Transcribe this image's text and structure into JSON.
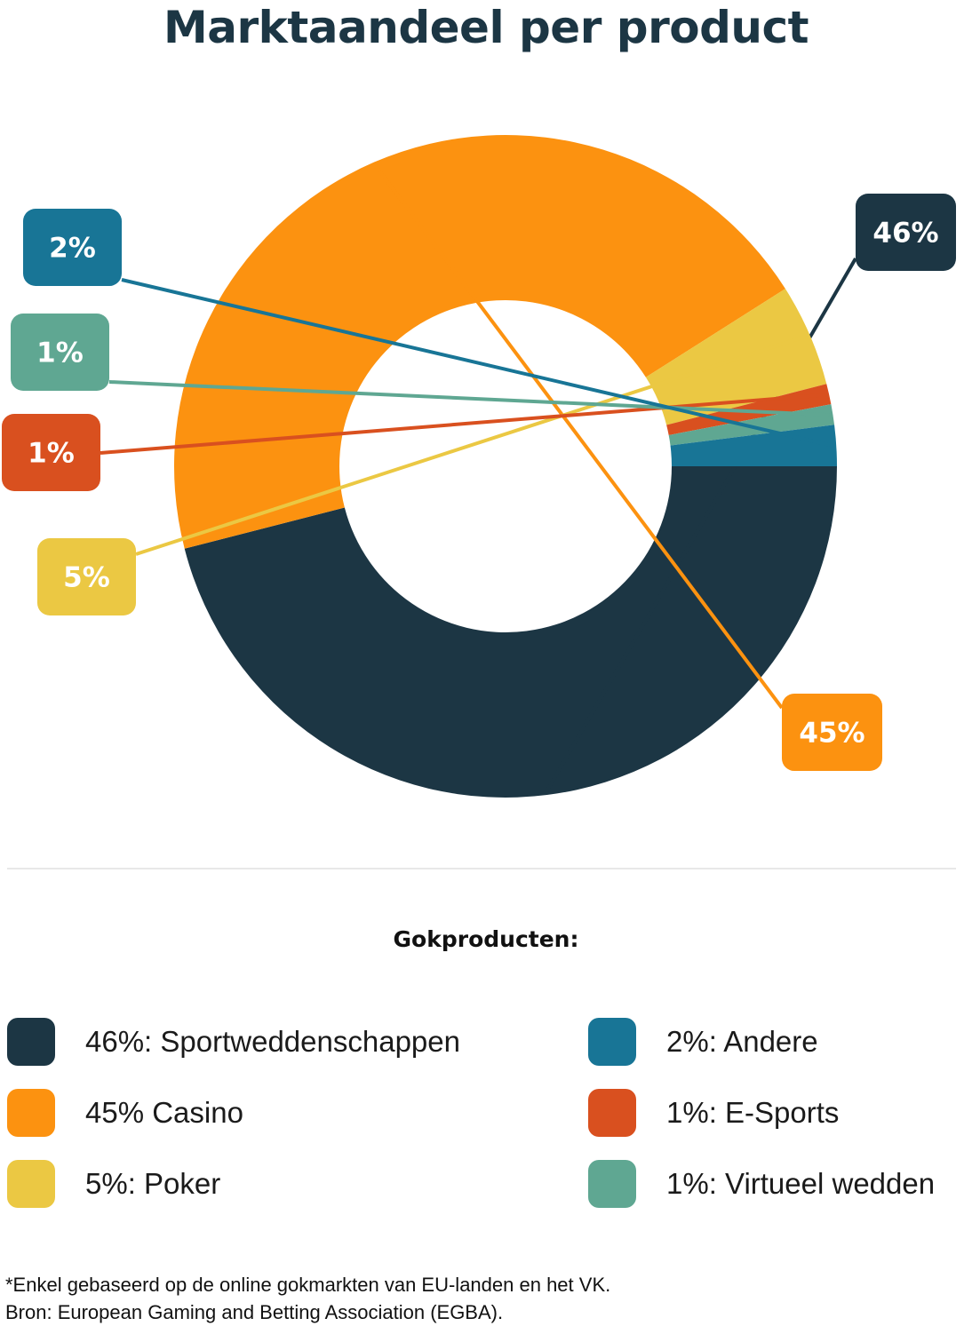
{
  "title": "Marktaandeel per product",
  "chart_data": {
    "type": "pie",
    "donut": true,
    "slices": [
      {
        "label": "Sportweddenschappen",
        "value": 46,
        "display": "46%",
        "color": "#1c3644"
      },
      {
        "label": "Casino",
        "value": 45,
        "display": "45%",
        "color": "#fc9210"
      },
      {
        "label": "Poker",
        "value": 5,
        "display": "5%",
        "color": "#ebc843"
      },
      {
        "label": "E-Sports",
        "value": 1,
        "display": "1%",
        "color": "#d9501f"
      },
      {
        "label": "Virtueel wedden",
        "value": 1,
        "display": "1%",
        "color": "#5fa792"
      },
      {
        "label": "Andere",
        "value": 2,
        "display": "2%",
        "color": "#187596"
      }
    ]
  },
  "legend": {
    "title": "Gokproducten:",
    "items": [
      {
        "label": "46%: Sportweddenschappen",
        "color": "#1c3644"
      },
      {
        "label": "45% Casino",
        "color": "#fc9210"
      },
      {
        "label": "5%: Poker",
        "color": "#ebc843"
      },
      {
        "label": "2%: Andere",
        "color": "#187596"
      },
      {
        "label": "1%: E-Sports",
        "color": "#d9501f"
      },
      {
        "label": "1%: Virtueel wedden",
        "color": "#5fa792"
      }
    ]
  },
  "footnote": {
    "line1": "*Enkel gebaseerd op de online gokmarkten van EU-landen en het VK.",
    "line2": "Bron: European Gaming and Betting Association (EGBA)."
  }
}
